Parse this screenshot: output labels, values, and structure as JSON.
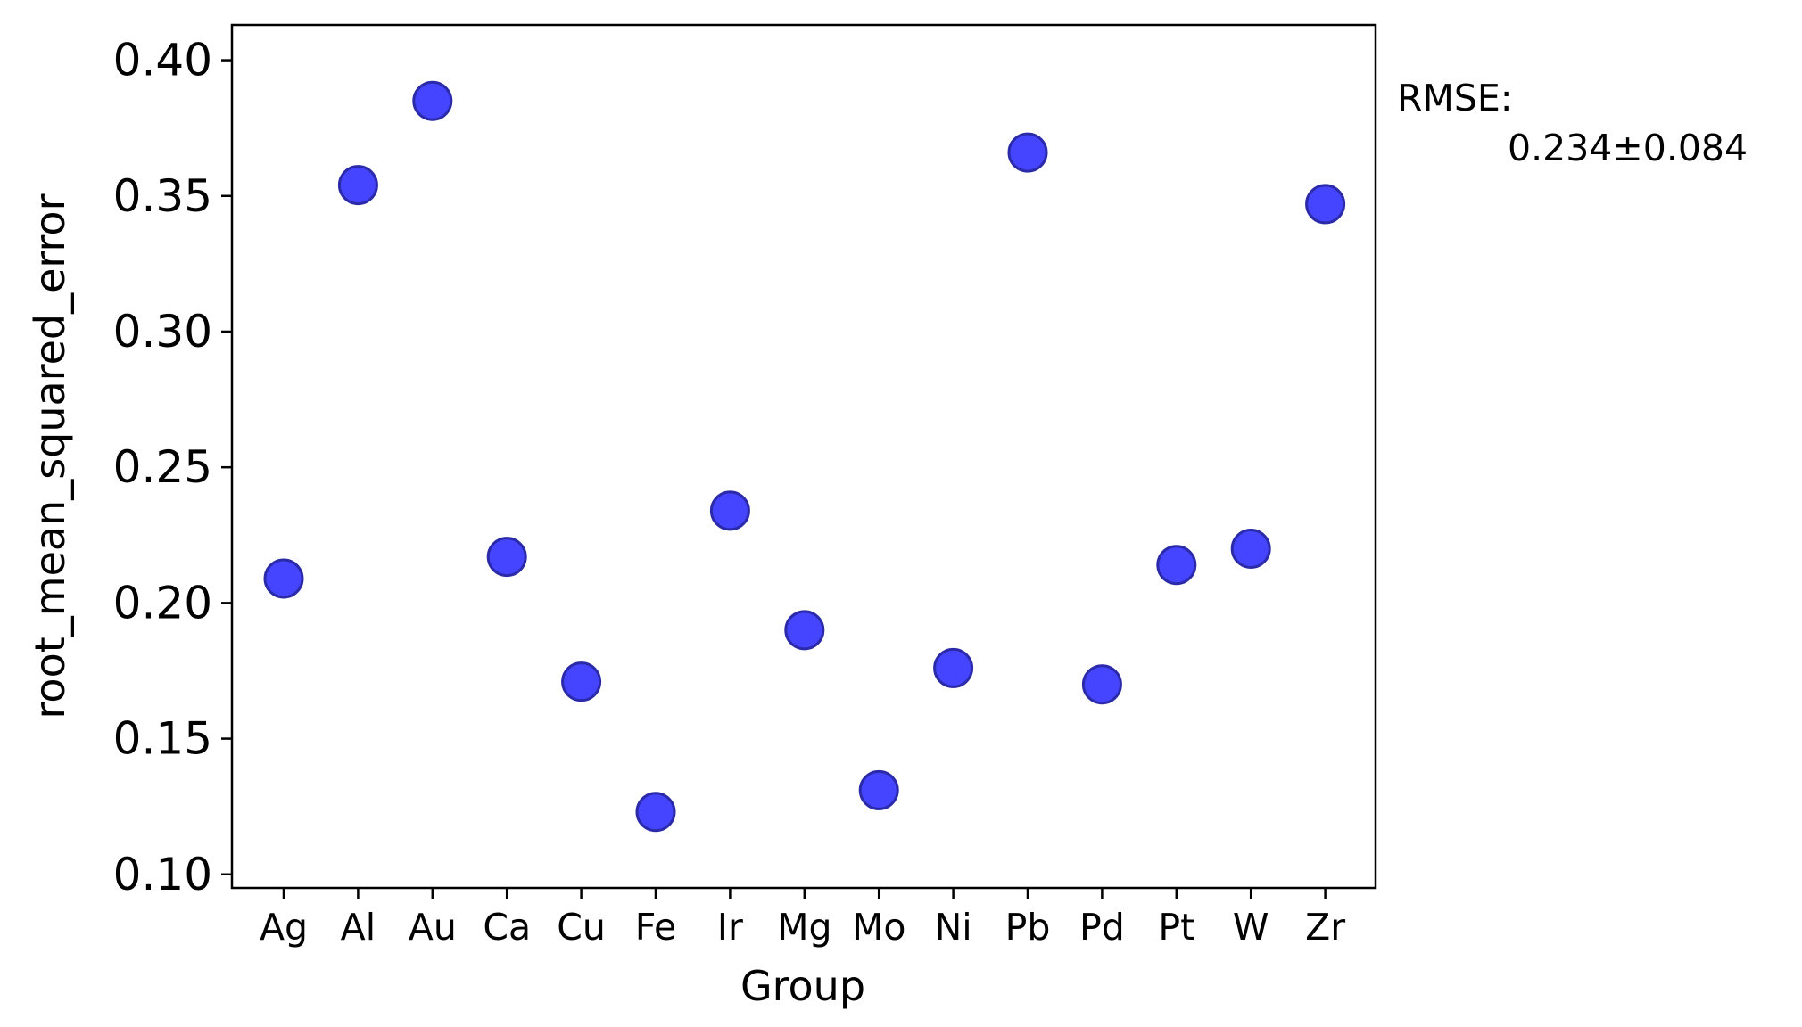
{
  "chart_data": {
    "type": "scatter",
    "categories": [
      "Ag",
      "Al",
      "Au",
      "Ca",
      "Cu",
      "Fe",
      "Ir",
      "Mg",
      "Mo",
      "Ni",
      "Pb",
      "Pd",
      "Pt",
      "W",
      "Zr"
    ],
    "values": [
      0.209,
      0.354,
      0.385,
      0.217,
      0.171,
      0.123,
      0.234,
      0.19,
      0.131,
      0.176,
      0.366,
      0.17,
      0.214,
      0.22,
      0.347
    ],
    "xlabel": "Group",
    "ylabel": "root_mean_squared_error",
    "ylim": [
      0.095,
      0.413
    ],
    "yticks": [
      "0.10",
      "0.15",
      "0.20",
      "0.25",
      "0.30",
      "0.35",
      "0.40"
    ],
    "grid": false,
    "marker_color": "#4545ff",
    "marker_edge_color": "#2b2baa",
    "annotation": {
      "line1": "RMSE:",
      "line2": "0.234±0.084"
    }
  }
}
